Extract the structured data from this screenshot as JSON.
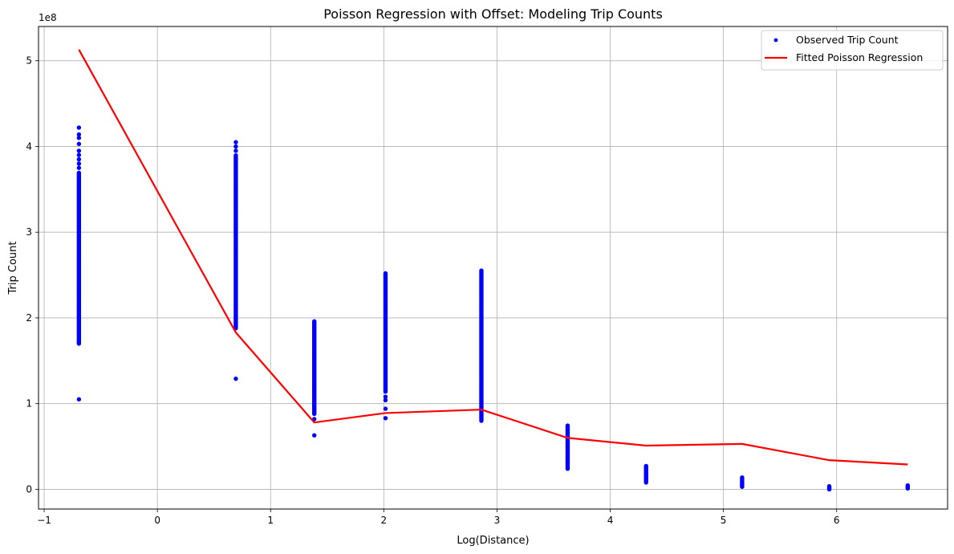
{
  "chart_data": {
    "type": "scatter",
    "title": "Poisson Regression with Offset: Modeling Trip Counts",
    "xlabel": "Log(Distance)",
    "ylabel": "Trip Count",
    "y_offset_label": "1e8",
    "xlim": [
      -1.05,
      6.98
    ],
    "ylim": [
      -0.23,
      5.4
    ],
    "y_scale_factor": 100000000,
    "x_ticks": [
      -1,
      0,
      1,
      2,
      3,
      4,
      5,
      6
    ],
    "x_tick_labels": [
      "−1",
      "0",
      "1",
      "2",
      "3",
      "4",
      "5",
      "6"
    ],
    "y_ticks": [
      0,
      1,
      2,
      3,
      4,
      5
    ],
    "y_tick_labels": [
      "0",
      "1",
      "2",
      "3",
      "4",
      "5"
    ],
    "grid": true,
    "legend_position": "top-right",
    "series": [
      {
        "name": "Observed Trip Count",
        "kind": "scatter",
        "color": "#0000ff",
        "groups": [
          {
            "x": -0.693,
            "ymin": 1.7,
            "ymax": 3.7,
            "outliers": [
              1.05,
              1.71,
              3.75,
              3.8,
              3.85,
              3.9,
              3.95,
              4.03,
              4.1,
              4.14,
              4.22
            ]
          },
          {
            "x": 0.693,
            "ymin": 1.88,
            "ymax": 3.9,
            "outliers": [
              1.29,
              3.95,
              4.0,
              4.05
            ]
          },
          {
            "x": 1.386,
            "ymin": 0.88,
            "ymax": 1.96,
            "outliers": [
              0.63,
              0.82
            ]
          },
          {
            "x": 2.015,
            "ymin": 1.14,
            "ymax": 2.52,
            "outliers": [
              0.83,
              0.94,
              1.04,
              1.08
            ]
          },
          {
            "x": 2.862,
            "ymin": 0.8,
            "ymax": 2.56,
            "outliers": []
          },
          {
            "x": 3.624,
            "ymin": 0.24,
            "ymax": 0.75,
            "outliers": []
          },
          {
            "x": 4.317,
            "ymin": 0.08,
            "ymax": 0.28,
            "outliers": []
          },
          {
            "x": 5.165,
            "ymin": 0.03,
            "ymax": 0.14,
            "outliers": []
          },
          {
            "x": 5.935,
            "ymin": 0.0,
            "ymax": 0.04,
            "outliers": []
          },
          {
            "x": 6.628,
            "ymin": 0.01,
            "ymax": 0.05,
            "outliers": []
          }
        ]
      },
      {
        "name": "Fitted Poisson Regression",
        "kind": "line",
        "color": "#ff0000",
        "x": [
          -0.693,
          0.693,
          1.386,
          2.015,
          2.862,
          3.624,
          4.317,
          5.165,
          5.935,
          6.628
        ],
        "y": [
          5.13,
          1.83,
          0.78,
          0.89,
          0.93,
          0.6,
          0.51,
          0.53,
          0.34,
          0.29
        ]
      }
    ]
  }
}
